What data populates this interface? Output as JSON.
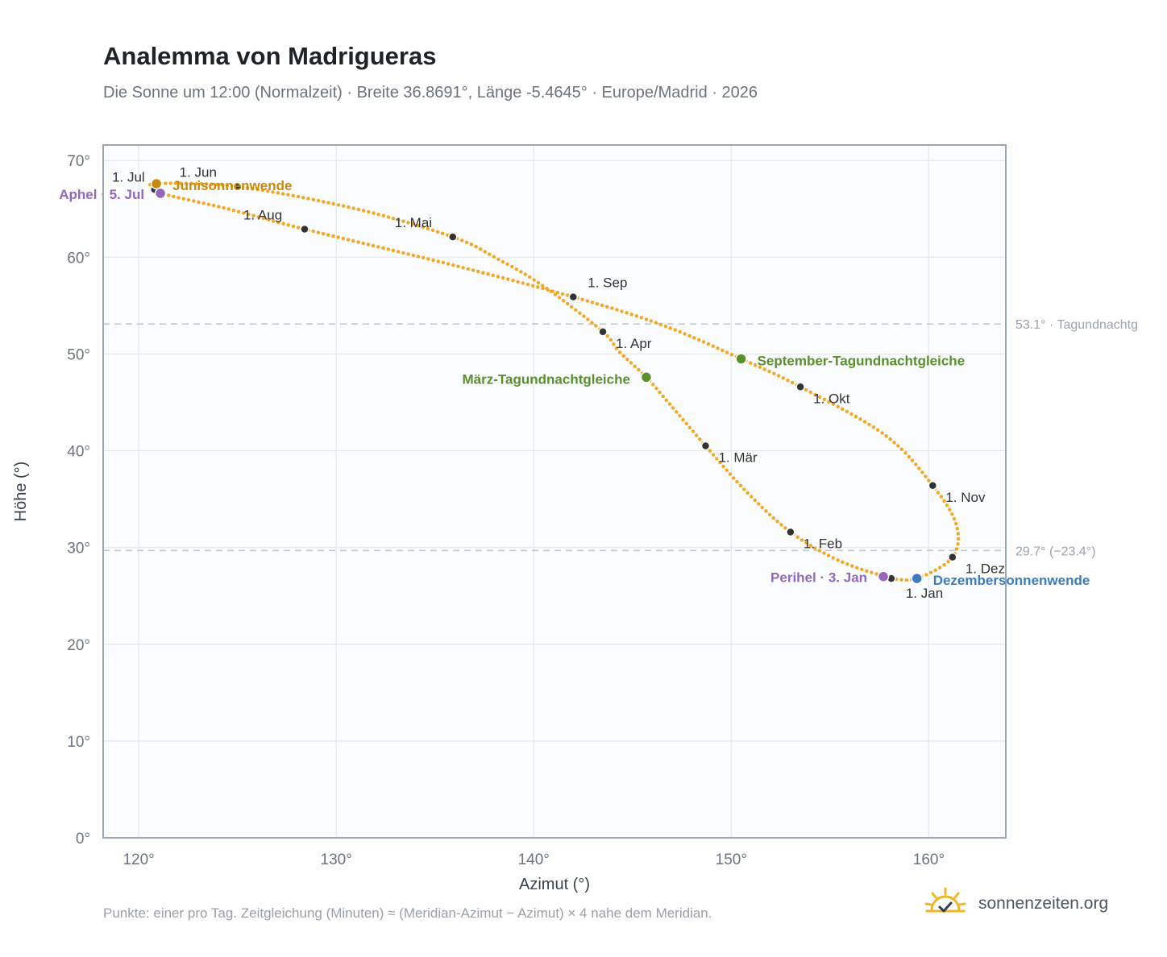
{
  "header": {
    "title": "Analemma von Madrigueras",
    "subtitle": "Die Sonne um 12:00 (Normalzeit) · Breite 36.8691°, Länge -5.4645° · Europe/Madrid · 2026"
  },
  "footer": {
    "note": "Punkte: einer pro Tag. Zeitgleichung (Minuten) ≈ (Meridian-Azimut − Azimut) × 4 nahe dem Meridian.",
    "brand": "sonnenzeiten.org",
    "brand_icon": "sun-check-icon"
  },
  "colors": {
    "curve": "#f5a623",
    "month_point": "#333333",
    "solstice_june": "#c98a0a",
    "solstice_december": "#3b7cc0",
    "equinox": "#5a8f2e",
    "apsis": "#9467bd",
    "reference_line": "#c3c9d0",
    "plot_background": "#fafcfd",
    "frame": "#9ba5b3"
  },
  "chart_data": {
    "type": "scatter",
    "xlabel": "Azimut (°)",
    "ylabel": "Höhe (°)",
    "xlim": [
      118.2,
      163.9
    ],
    "ylim": [
      0,
      71.6
    ],
    "x_ticks": [
      120,
      130,
      140,
      150,
      160
    ],
    "y_ticks": [
      0,
      10,
      20,
      30,
      40,
      50,
      60,
      70
    ],
    "x_tick_labels": [
      "120°",
      "130°",
      "140°",
      "150°",
      "160°"
    ],
    "y_tick_labels": [
      "0°",
      "10°",
      "20°",
      "30°",
      "40°",
      "50°",
      "60°",
      "70°"
    ],
    "grid": true,
    "reference_lines": [
      {
        "y": 53.1,
        "label": "53.1° · Tagundnachtg"
      },
      {
        "y": 29.7,
        "label": "29.7° (−23.4°)"
      }
    ],
    "month_points": [
      {
        "label": "1. Jan",
        "azimuth": 158.1,
        "altitude": 26.8
      },
      {
        "label": "1. Feb",
        "azimuth": 153.0,
        "altitude": 31.6
      },
      {
        "label": "1. Mär",
        "azimuth": 148.7,
        "altitude": 40.5
      },
      {
        "label": "1. Apr",
        "azimuth": 143.5,
        "altitude": 52.3
      },
      {
        "label": "1. Mai",
        "azimuth": 135.9,
        "altitude": 62.1
      },
      {
        "label": "1. Jun",
        "azimuth": 125.0,
        "altitude": 67.3
      },
      {
        "label": "1. Jul",
        "azimuth": 120.8,
        "altitude": 67.0
      },
      {
        "label": "1. Aug",
        "azimuth": 128.4,
        "altitude": 62.9
      },
      {
        "label": "1. Sep",
        "azimuth": 142.0,
        "altitude": 55.9
      },
      {
        "label": "1. Okt",
        "azimuth": 153.5,
        "altitude": 46.6
      },
      {
        "label": "1. Nov",
        "azimuth": 160.2,
        "altitude": 36.4
      },
      {
        "label": "1. Dez",
        "azimuth": 161.2,
        "altitude": 29.0
      }
    ],
    "events": [
      {
        "label": "Junisonnenwende",
        "azimuth": 120.9,
        "altitude": 67.6,
        "kind": "solstice_june"
      },
      {
        "label": "Aphel · 5. Jul",
        "azimuth": 121.1,
        "altitude": 66.6,
        "kind": "apsis"
      },
      {
        "label": "März-Tagundnachtgleiche",
        "azimuth": 145.7,
        "altitude": 47.6,
        "kind": "equinox"
      },
      {
        "label": "September-Tagundnachtgleiche",
        "azimuth": 150.5,
        "altitude": 49.5,
        "kind": "equinox"
      },
      {
        "label": "Perihel · 3. Jan",
        "azimuth": 157.7,
        "altitude": 27.0,
        "kind": "apsis"
      },
      {
        "label": "Dezembersonnenwende",
        "azimuth": 159.4,
        "altitude": 26.8,
        "kind": "solstice_december"
      }
    ],
    "curve_path": [
      [
        158.1,
        26.8
      ],
      [
        155.5,
        28.6
      ],
      [
        153.0,
        31.6
      ],
      [
        150.8,
        35.7
      ],
      [
        148.7,
        40.5
      ],
      [
        146.6,
        45.5
      ],
      [
        145.7,
        47.6
      ],
      [
        144.3,
        50.3
      ],
      [
        143.5,
        52.3
      ],
      [
        140.5,
        57.0
      ],
      [
        138.2,
        59.8
      ],
      [
        135.9,
        62.1
      ],
      [
        131.0,
        65.0
      ],
      [
        125.0,
        67.3
      ],
      [
        120.9,
        67.6
      ],
      [
        120.8,
        67.0
      ],
      [
        121.1,
        66.6
      ],
      [
        124.5,
        65.0
      ],
      [
        128.4,
        62.9
      ],
      [
        135.5,
        59.4
      ],
      [
        142.0,
        55.9
      ],
      [
        146.5,
        53.0
      ],
      [
        150.5,
        49.5
      ],
      [
        153.5,
        46.6
      ],
      [
        157.8,
        41.6
      ],
      [
        160.2,
        36.4
      ],
      [
        161.4,
        32.3
      ],
      [
        161.2,
        29.0
      ],
      [
        159.4,
        26.8
      ],
      [
        158.1,
        26.8
      ]
    ]
  }
}
